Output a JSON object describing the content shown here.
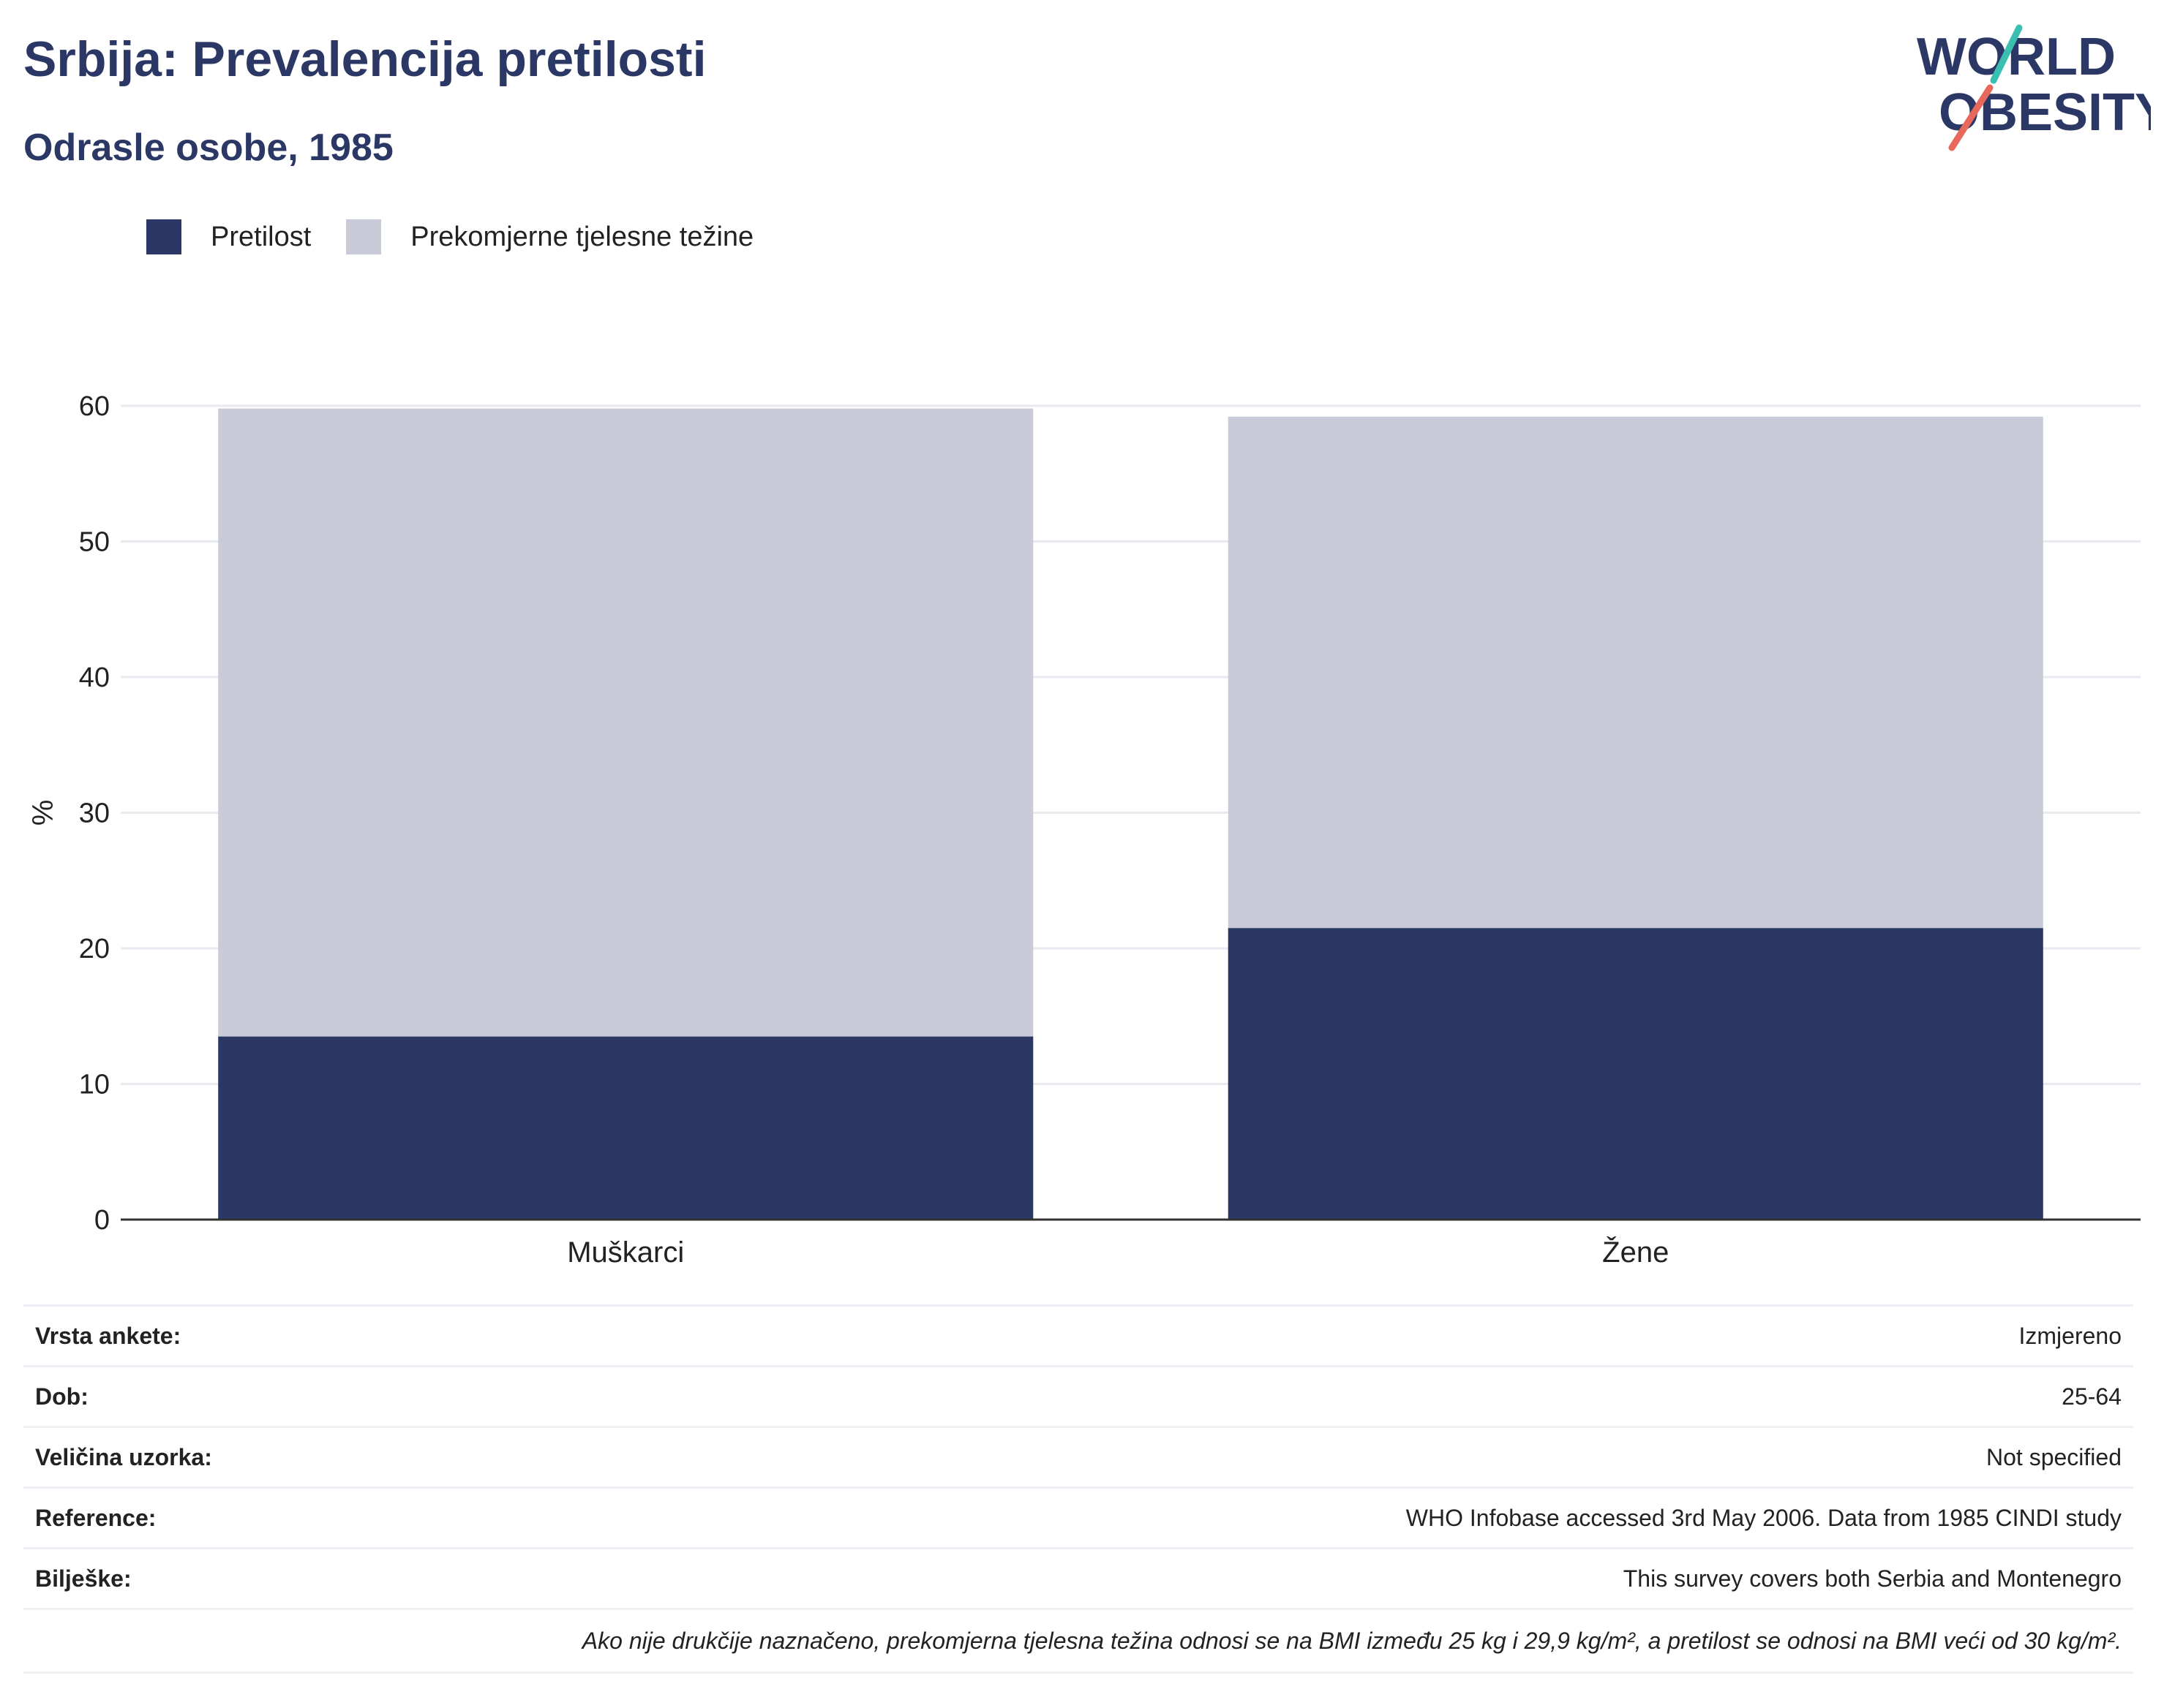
{
  "header": {
    "title": "Srbija: Prevalencija pretilosti",
    "subtitle": "Odrasle osobe, 1985"
  },
  "logo": {
    "line1": "WORLD",
    "line2": "OBESITY",
    "colors": {
      "text": "#2b3764",
      "stroke_top": "#3bbfb0",
      "stroke_bottom": "#e8695c"
    }
  },
  "legend": [
    {
      "label": "Pretilost",
      "color": "#2b3764"
    },
    {
      "label": "Prekomjerne tjelesne težine",
      "color": "#c9ccd8"
    }
  ],
  "chart_data": {
    "type": "bar",
    "stacked": true,
    "categories": [
      "Muškarci",
      "Žene"
    ],
    "series": [
      {
        "name": "Pretilost",
        "values": [
          13.5,
          21.5
        ],
        "color": "#2b3764"
      },
      {
        "name": "Prekomjerne tjelesne težine",
        "values": [
          46.3,
          37.7
        ],
        "color": "#c9ccd8"
      }
    ],
    "ylabel": "%",
    "xlabel": "",
    "ylim": [
      0,
      60
    ],
    "yticks": [
      0,
      10,
      20,
      30,
      40,
      50,
      60
    ],
    "grid": true,
    "legend_position": "top-left"
  },
  "meta_table": {
    "rows": [
      {
        "key": "Vrsta ankete:",
        "value": "Izmjereno"
      },
      {
        "key": "Dob:",
        "value": "25-64"
      },
      {
        "key": "Veličina uzorka:",
        "value": "Not specified"
      },
      {
        "key": "Reference:",
        "value": "WHO Infobase accessed 3rd May 2006. Data from 1985 CINDI study"
      },
      {
        "key": "Bilješke:",
        "value": "This survey covers both Serbia and Montenegro"
      }
    ],
    "note": "Ako nije drukčije naznačeno, prekomjerna tjelesna težina odnosi se na BMI između 25 kg i 29,9 kg/m², a pretilost se odnosi na BMI veći od 30 kg/m²."
  }
}
